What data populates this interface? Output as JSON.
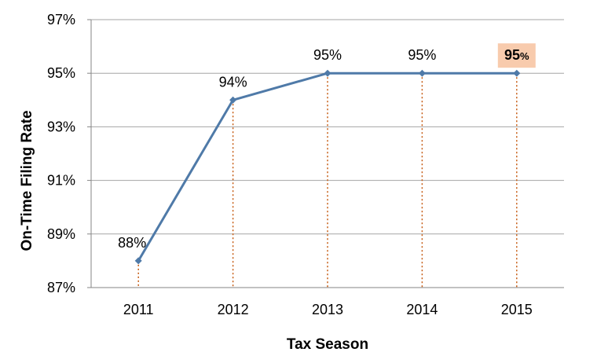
{
  "chart_data": {
    "type": "line",
    "title": "",
    "xlabel": "Tax Season",
    "ylabel": "On-Time Filing Rate",
    "categories": [
      "2011",
      "2012",
      "2013",
      "2014",
      "2015"
    ],
    "series": [
      {
        "values": [
          88,
          94,
          95,
          95,
          95
        ],
        "color": "#4f7aa8"
      }
    ],
    "data_labels": [
      "88%",
      "94%",
      "95%",
      "95%",
      "95%"
    ],
    "highlighted_label_index": 4,
    "highlight_color": "#f8cbad",
    "drop_line_color": "#c55a11",
    "ylim": [
      87,
      97
    ],
    "y_ticks": [
      87,
      89,
      91,
      93,
      95,
      97
    ],
    "y_tick_labels": [
      "87%",
      "89%",
      "91%",
      "93%",
      "95%",
      "97%"
    ],
    "grid": true,
    "grid_color": "#a6a6a6"
  }
}
